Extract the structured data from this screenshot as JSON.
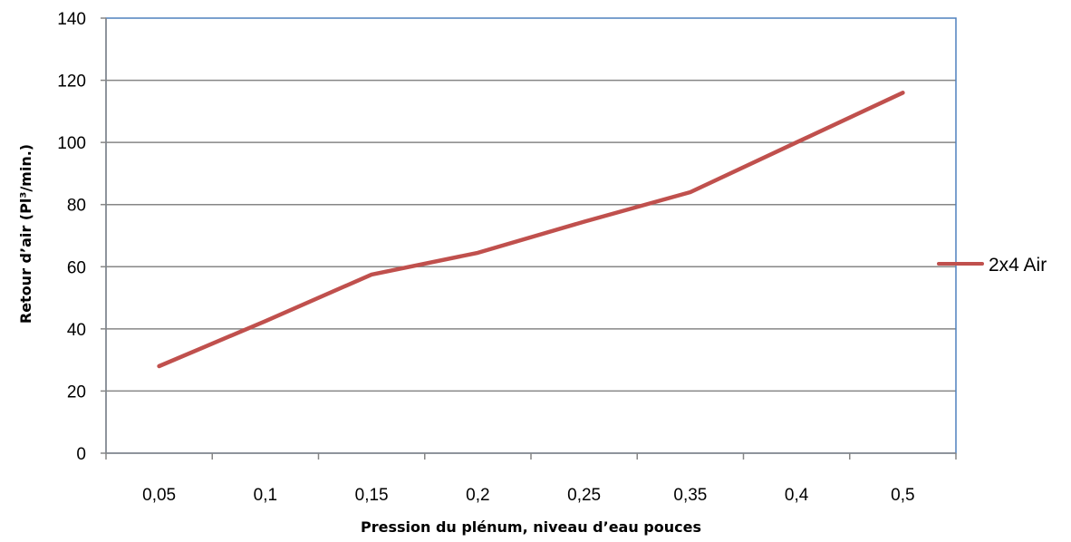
{
  "chart_data": {
    "type": "line",
    "categories": [
      "0,05",
      "0,1",
      "0,15",
      "0,2",
      "0,25",
      "0,35",
      "0,4",
      "0,5"
    ],
    "series": [
      {
        "name": "2x4 Air",
        "values": [
          28,
          42.5,
          57.5,
          64.5,
          74.5,
          84,
          100,
          116
        ],
        "color": "#c0504d"
      }
    ],
    "xlabel": "Pression du plénum, niveau d’eau pouces",
    "ylabel": "Retour d’air (Pl³/min.)",
    "ylim": [
      0,
      140
    ],
    "yticks": [
      "0",
      "20",
      "40",
      "60",
      "80",
      "100",
      "120",
      "140"
    ],
    "grid": true,
    "legend": "right",
    "plot_border_color": "#4f81bd",
    "gridline_color": "#868686"
  }
}
